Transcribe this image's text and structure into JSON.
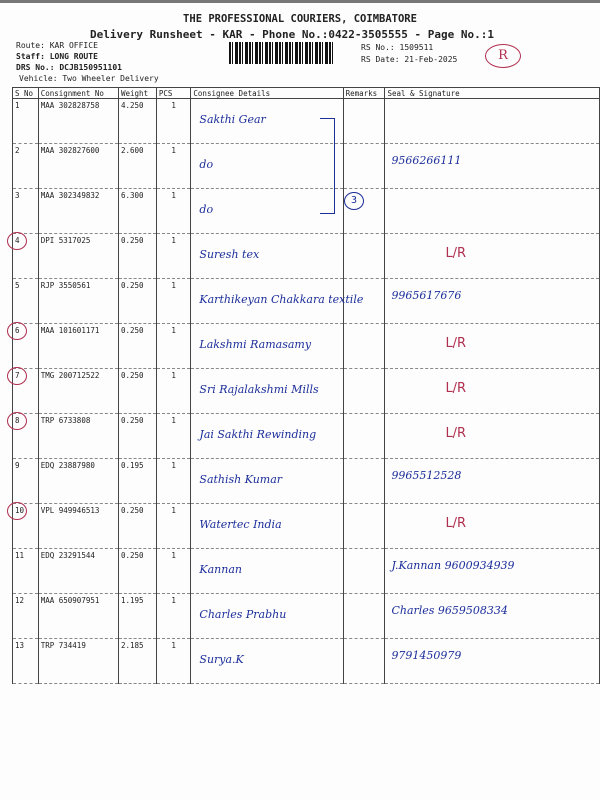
{
  "header": {
    "company": "THE PROFESSIONAL COURIERS, COIMBATORE",
    "title": "Delivery Runsheet - KAR - Phone No.:0422-3505555 - Page No.:1",
    "route": "Route: KAR OFFICE",
    "staff": "Staff: LONG ROUTE",
    "drs": "DRS No.: DCJB150951101",
    "vehicle": "Vehicle: Two Wheeler Delivery",
    "rs_no": "RS No.: 1509511",
    "rs_date": "RS Date: 21-Feb-2025",
    "stamp": "R"
  },
  "columns": [
    "S No",
    "Consignment No",
    "Weight",
    "PCS",
    "Consignee Details",
    "Remarks",
    "Seal & Signature"
  ],
  "rows": [
    {
      "sno": "1",
      "cn": "MAA 302828758",
      "wt": "4.250",
      "pcs": "1",
      "consignee": "Sakthi Gear",
      "sig": "",
      "lr": "",
      "circled": false
    },
    {
      "sno": "2",
      "cn": "MAA 302827600",
      "wt": "2.600",
      "pcs": "1",
      "consignee": "do",
      "sig": "9566266111",
      "lr": "",
      "circled": false
    },
    {
      "sno": "3",
      "cn": "MAA 302349832",
      "wt": "6.300",
      "pcs": "1",
      "consignee": "do",
      "sig": "",
      "lr": "",
      "circled": false
    },
    {
      "sno": "4",
      "cn": "DPI 5317025",
      "wt": "0.250",
      "pcs": "1",
      "consignee": "Suresh tex",
      "sig": "",
      "lr": "L/R",
      "circled": true
    },
    {
      "sno": "5",
      "cn": "RJP 3550561",
      "wt": "0.250",
      "pcs": "1",
      "consignee": "Karthikeyan Chakkara textile",
      "sig": "9965617676",
      "lr": "",
      "circled": false
    },
    {
      "sno": "6",
      "cn": "MAA 101601171",
      "wt": "0.250",
      "pcs": "1",
      "consignee": "Lakshmi Ramasamy",
      "sig": "",
      "lr": "L/R",
      "circled": true
    },
    {
      "sno": "7",
      "cn": "TMG 200712522",
      "wt": "0.250",
      "pcs": "1",
      "consignee": "Sri Rajalakshmi Mills",
      "sig": "",
      "lr": "L/R",
      "circled": true
    },
    {
      "sno": "8",
      "cn": "TRP 6733808",
      "wt": "0.250",
      "pcs": "1",
      "consignee": "Jai Sakthi Rewinding",
      "sig": "",
      "lr": "L/R",
      "circled": true
    },
    {
      "sno": "9",
      "cn": "EDQ 23887980",
      "wt": "0.195",
      "pcs": "1",
      "consignee": "Sathish Kumar",
      "sig": "9965512528",
      "lr": "",
      "circled": false
    },
    {
      "sno": "10",
      "cn": "VPL 949946513",
      "wt": "0.250",
      "pcs": "1",
      "consignee": "Watertec India",
      "sig": "",
      "lr": "L/R",
      "circled": true
    },
    {
      "sno": "11",
      "cn": "EDQ 23291544",
      "wt": "0.250",
      "pcs": "1",
      "consignee": "Kannan",
      "sig": "J.Kannan 9600934939",
      "lr": "",
      "circled": false
    },
    {
      "sno": "12",
      "cn": "MAA 650907951",
      "wt": "1.195",
      "pcs": "1",
      "consignee": "Charles Prabhu",
      "sig": "Charles 9659508334",
      "lr": "",
      "circled": false
    },
    {
      "sno": "13",
      "cn": "TRP 734419",
      "wt": "2.185",
      "pcs": "1",
      "consignee": "Surya.K",
      "sig": "9791450979",
      "lr": "",
      "circled": false
    }
  ],
  "brace_note": "3",
  "colors": {
    "ink_blue": "#1c2e9a",
    "ink_red": "#b03050"
  }
}
